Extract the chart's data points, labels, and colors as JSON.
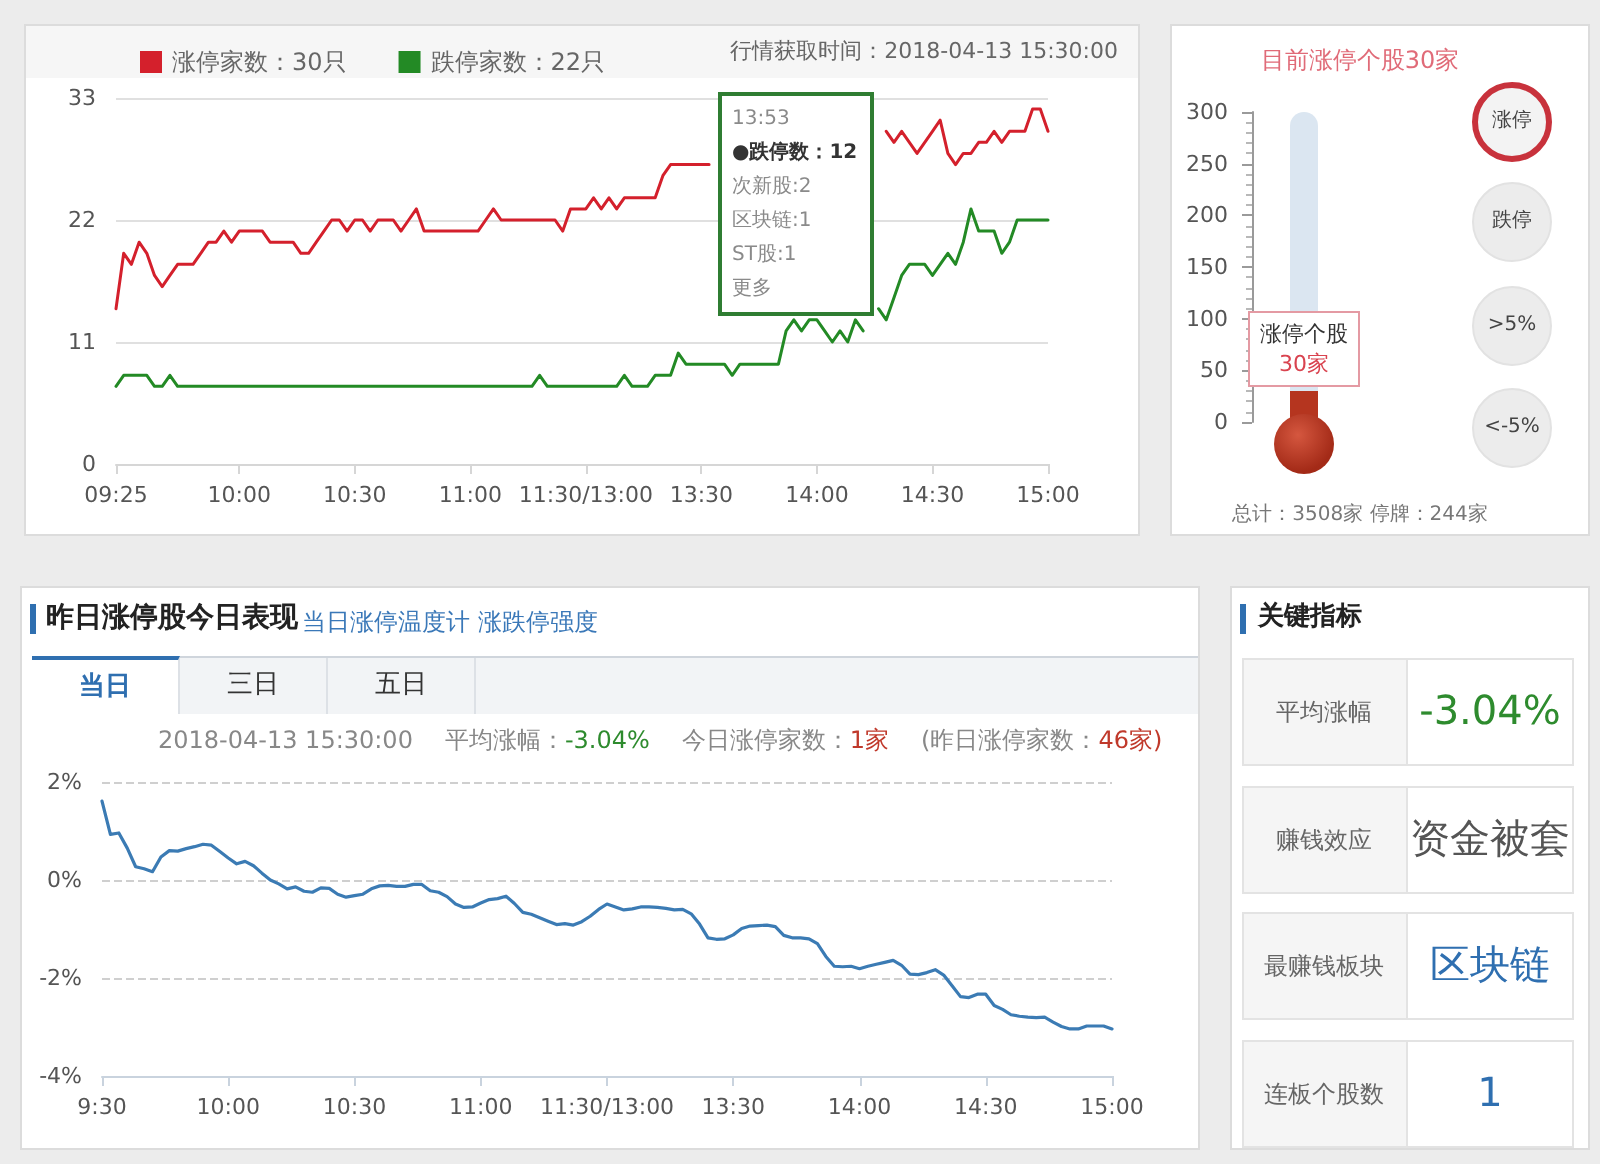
{
  "chart_data": [
    {
      "type": "line",
      "categories": [
        "09:25",
        null,
        null,
        null,
        null,
        null,
        null,
        null,
        null,
        null,
        null,
        null,
        null,
        null,
        null,
        null,
        "10:00",
        null,
        null,
        null,
        null,
        null,
        null,
        null,
        null,
        null,
        null,
        null,
        null,
        null,
        null,
        "10:30",
        null,
        null,
        null,
        null,
        null,
        null,
        null,
        null,
        null,
        null,
        null,
        null,
        null,
        null,
        "11:00",
        null,
        null,
        null,
        null,
        null,
        null,
        null,
        null,
        null,
        null,
        null,
        null,
        null,
        null,
        "11:30/13:00",
        null,
        null,
        null,
        null,
        null,
        null,
        null,
        null,
        null,
        null,
        null,
        null,
        null,
        null,
        "13:30",
        null,
        null,
        null,
        null,
        null,
        null,
        null,
        null,
        null,
        null,
        null,
        null,
        null,
        null,
        "14:00",
        null,
        null,
        null,
        null,
        null,
        null,
        null,
        null,
        null,
        null,
        null,
        null,
        null,
        null,
        "14:30",
        null,
        null,
        null,
        null,
        null,
        null,
        null,
        null,
        null,
        null,
        null,
        null,
        null,
        null,
        "15:00"
      ],
      "series": [
        {
          "name": "涨停家数：30只",
          "color": "#d4202c",
          "values": [
            14,
            19,
            18,
            20,
            19,
            17,
            16,
            17,
            18,
            18,
            18,
            19,
            20,
            20,
            21,
            20,
            21,
            21,
            21,
            21,
            20,
            20,
            20,
            20,
            19,
            19,
            20,
            21,
            22,
            22,
            21,
            22,
            22,
            21,
            22,
            22,
            22,
            21,
            22,
            23,
            21,
            21,
            21,
            21,
            21,
            21,
            21,
            21,
            22,
            23,
            22,
            22,
            22,
            22,
            22,
            22,
            22,
            22,
            21,
            23,
            23,
            23,
            24,
            23,
            24,
            23,
            24,
            24,
            24,
            24,
            24,
            26,
            27,
            27,
            27,
            27,
            27,
            27,
            null,
            null,
            null,
            null,
            null,
            null,
            null,
            null,
            null,
            null,
            null,
            null,
            null,
            null,
            null,
            null,
            null,
            null,
            null,
            null,
            null,
            null,
            30,
            29,
            30,
            29,
            28,
            29,
            30,
            31,
            28,
            27,
            28,
            28,
            29,
            29,
            30,
            29,
            30,
            30,
            30,
            32,
            32,
            30
          ]
        },
        {
          "name": "跌停家数：22只",
          "color": "#238a25",
          "values": [
            7,
            8,
            8,
            8,
            8,
            7,
            7,
            8,
            7,
            7,
            7,
            7,
            7,
            7,
            7,
            7,
            7,
            7,
            7,
            7,
            7,
            7,
            7,
            7,
            7,
            7,
            7,
            7,
            7,
            7,
            7,
            7,
            7,
            7,
            7,
            7,
            7,
            7,
            7,
            7,
            7,
            7,
            7,
            7,
            7,
            7,
            7,
            7,
            7,
            7,
            7,
            7,
            7,
            7,
            7,
            8,
            7,
            7,
            7,
            7,
            7,
            7,
            7,
            7,
            7,
            7,
            8,
            7,
            7,
            7,
            8,
            8,
            8,
            10,
            9,
            9,
            9,
            9,
            9,
            9,
            8,
            9,
            9,
            9,
            9,
            9,
            9,
            12,
            13,
            12,
            13,
            13,
            12,
            11,
            12,
            11,
            13,
            12,
            null,
            14,
            13,
            15,
            17,
            18,
            18,
            18,
            17,
            18,
            19,
            18,
            20,
            23,
            21,
            21,
            21,
            19,
            20,
            22,
            22,
            22,
            22,
            22
          ]
        }
      ],
      "ylim": [
        0,
        33
      ],
      "yticks": [
        0,
        11,
        22,
        33
      ],
      "grid": "y",
      "legend": "top left",
      "annotations": [
        "行情获取时间：2018-04-13 15:30:00",
        "13:53\n●跌停数：12\n次新股:2\n区块链:1\nST股:1\n更多"
      ]
    },
    {
      "type": "bar",
      "title": "目前涨停个股30家",
      "categories": [
        null
      ],
      "values": [
        30
      ],
      "value_labels": [
        "涨停个股\n30家"
      ],
      "color": "#b5351f",
      "ylim": [
        0,
        300
      ],
      "yticks": [
        0,
        50,
        100,
        150,
        200,
        250,
        300
      ],
      "tick_labels": "y",
      "annotations": [
        "涨停",
        "跌停",
        ">5%",
        "<-5%",
        "总计：3508家 停牌：244家"
      ]
    },
    {
      "type": "line",
      "title": "昨日涨停股今日表现",
      "subtitle": "当日涨停温度计 涨跌停强度",
      "color": "#3b7bb4",
      "categories": [
        "9:30",
        null,
        null,
        null,
        null,
        null,
        null,
        null,
        null,
        null,
        null,
        null,
        null,
        null,
        null,
        "10:00",
        null,
        null,
        null,
        null,
        null,
        null,
        null,
        null,
        null,
        null,
        null,
        null,
        null,
        null,
        "10:30",
        null,
        null,
        null,
        null,
        null,
        null,
        null,
        null,
        null,
        null,
        null,
        null,
        null,
        null,
        "11:00",
        null,
        null,
        null,
        null,
        null,
        null,
        null,
        null,
        null,
        null,
        null,
        null,
        null,
        null,
        "11:30/13:00",
        null,
        null,
        null,
        null,
        null,
        null,
        null,
        null,
        null,
        null,
        null,
        null,
        null,
        null,
        "13:30",
        null,
        null,
        null,
        null,
        null,
        null,
        null,
        null,
        null,
        null,
        null,
        null,
        null,
        null,
        "14:00",
        null,
        null,
        null,
        null,
        null,
        null,
        null,
        null,
        null,
        null,
        null,
        null,
        null,
        null,
        "14:30",
        null,
        null,
        null,
        null,
        null,
        null,
        null,
        null,
        null,
        null,
        null,
        null,
        null,
        null,
        "15:00"
      ],
      "values": [
        1.61,
        0.93,
        0.96,
        0.65,
        0.27,
        0.23,
        0.17,
        0.47,
        0.6,
        0.59,
        0.64,
        0.68,
        0.73,
        0.71,
        0.58,
        0.45,
        0.33,
        0.38,
        0.29,
        0.14,
        0.0,
        -0.08,
        -0.18,
        -0.14,
        -0.23,
        -0.25,
        -0.16,
        -0.17,
        -0.29,
        -0.35,
        -0.32,
        -0.29,
        -0.18,
        -0.12,
        -0.11,
        -0.13,
        -0.13,
        -0.09,
        -0.09,
        -0.22,
        -0.25,
        -0.34,
        -0.49,
        -0.56,
        -0.55,
        -0.47,
        -0.4,
        -0.38,
        -0.33,
        -0.48,
        -0.66,
        -0.7,
        -0.77,
        -0.84,
        -0.91,
        -0.89,
        -0.92,
        -0.85,
        -0.74,
        -0.6,
        -0.49,
        -0.55,
        -0.61,
        -0.59,
        -0.55,
        -0.55,
        -0.56,
        -0.58,
        -0.61,
        -0.6,
        -0.69,
        -0.9,
        -1.18,
        -1.21,
        -1.2,
        -1.12,
        -0.99,
        -0.94,
        -0.93,
        -0.92,
        -0.95,
        -1.13,
        -1.18,
        -1.18,
        -1.2,
        -1.3,
        -1.56,
        -1.76,
        -1.77,
        -1.76,
        -1.81,
        -1.76,
        -1.72,
        -1.68,
        -1.64,
        -1.74,
        -1.92,
        -1.93,
        -1.89,
        -1.83,
        -1.94,
        -2.16,
        -2.38,
        -2.4,
        -2.33,
        -2.33,
        -2.56,
        -2.64,
        -2.75,
        -2.78,
        -2.8,
        -2.81,
        -2.8,
        -2.9,
        -2.99,
        -3.04,
        -3.04,
        -2.98,
        -2.98,
        -2.98,
        -3.04
      ],
      "ylim": [
        -4,
        2
      ],
      "yticks": [
        {
          "value": -4,
          "label": "-4%"
        },
        {
          "value": -2,
          "label": "-2%"
        },
        {
          "value": 0,
          "label": "0%"
        },
        {
          "value": 2,
          "label": "2%"
        }
      ],
      "grid": "y",
      "annotations": [
        "当日",
        "三日",
        "五日",
        "2018-04-13 15:30:00",
        "平均涨幅：-3.04%",
        "今日涨停家数：1家",
        "(昨日涨停家数：46家)"
      ]
    },
    {
      "type": "other",
      "title": "关键指标",
      "annotations": [
        "平均涨幅",
        "-3.04%",
        "赚钱效应",
        "资金被套",
        "最赚钱板块",
        "区块链",
        "连板个股数",
        "1"
      ]
    }
  ]
}
